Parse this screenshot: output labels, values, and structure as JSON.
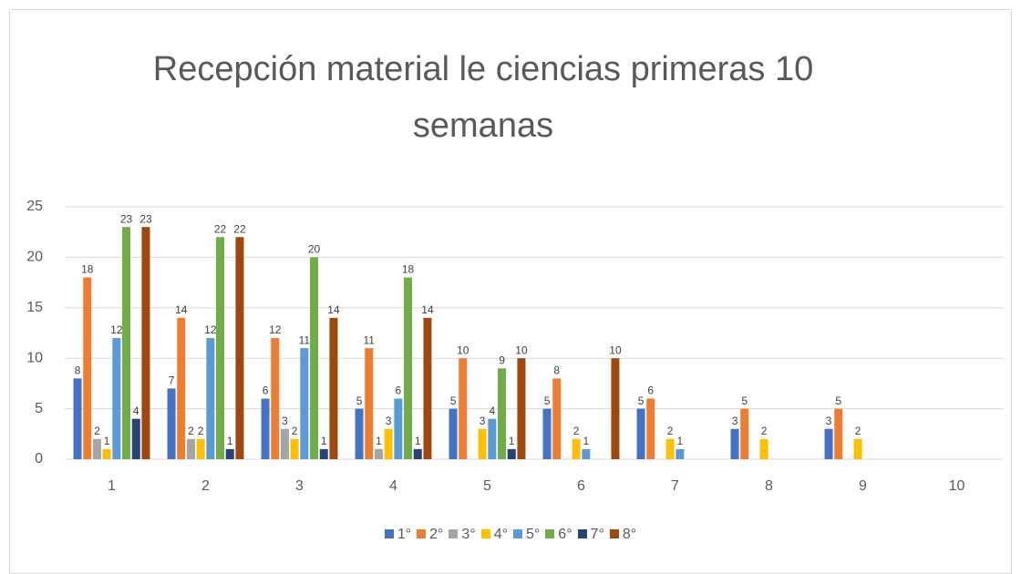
{
  "chart_data": {
    "type": "bar",
    "title": "Recepción material le ciencias primeras 10 semanas",
    "categories": [
      "1",
      "2",
      "3",
      "4",
      "5",
      "6",
      "7",
      "8",
      "9",
      "10"
    ],
    "series": [
      {
        "name": "1°",
        "color": "#4472c4",
        "values": [
          8,
          7,
          6,
          5,
          5,
          5,
          5,
          3,
          3,
          null
        ]
      },
      {
        "name": "2°",
        "color": "#ed7d31",
        "values": [
          18,
          14,
          12,
          11,
          10,
          8,
          6,
          5,
          5,
          null
        ]
      },
      {
        "name": "3°",
        "color": "#a5a5a5",
        "values": [
          2,
          2,
          3,
          1,
          null,
          null,
          null,
          null,
          null,
          null
        ]
      },
      {
        "name": "4°",
        "color": "#ffc000",
        "values": [
          1,
          2,
          2,
          3,
          3,
          2,
          2,
          2,
          2,
          null
        ]
      },
      {
        "name": "5°",
        "color": "#5b9bd5",
        "values": [
          12,
          12,
          11,
          6,
          4,
          1,
          1,
          null,
          null,
          null
        ]
      },
      {
        "name": "6°",
        "color": "#70ad47",
        "values": [
          23,
          22,
          20,
          18,
          9,
          null,
          null,
          null,
          null,
          null
        ]
      },
      {
        "name": "7°",
        "color": "#264478",
        "values": [
          4,
          1,
          1,
          1,
          1,
          null,
          null,
          null,
          null,
          null
        ]
      },
      {
        "name": "8°",
        "color": "#9e480e",
        "values": [
          23,
          22,
          14,
          14,
          10,
          10,
          null,
          null,
          null,
          null
        ]
      }
    ],
    "ylim": [
      0,
      25
    ],
    "yticks": [
      0,
      5,
      10,
      15,
      20,
      25
    ],
    "grid": true,
    "legend": "bottom"
  }
}
